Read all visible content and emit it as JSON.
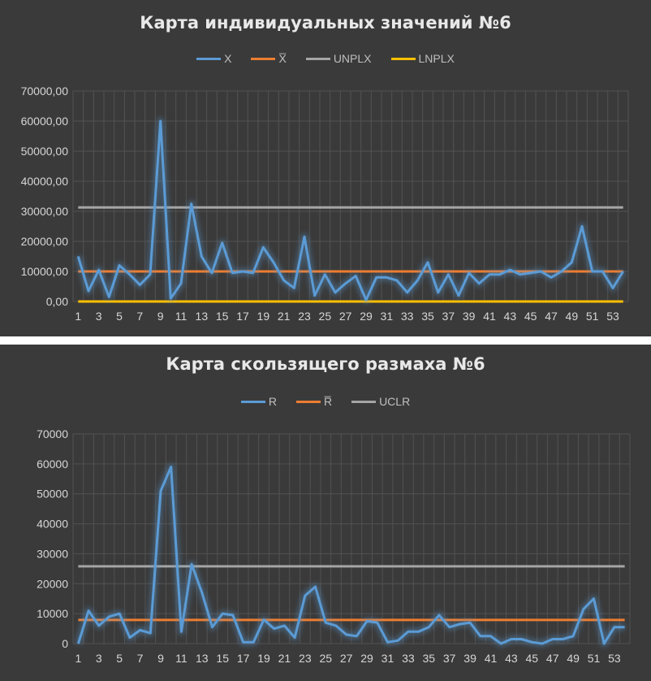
{
  "chart_data": [
    {
      "type": "line",
      "title": "Карта индивидуальных значений №6",
      "ylim": [
        0,
        70000
      ],
      "y_ticks": [
        "0,00",
        "10000,00",
        "20000,00",
        "30000,00",
        "40000,00",
        "50000,00",
        "60000,00",
        "70000,00"
      ],
      "x_ticks": [
        "1",
        "3",
        "5",
        "7",
        "9",
        "11",
        "13",
        "15",
        "17",
        "19",
        "21",
        "23",
        "25",
        "27",
        "29",
        "31",
        "33",
        "35",
        "37",
        "39",
        "41",
        "43",
        "45",
        "47",
        "49",
        "51",
        "53"
      ],
      "legend": "top",
      "grid": true,
      "series": [
        {
          "name": "X",
          "color": "#5b9bd5",
          "values": [
            15000,
            3500,
            10500,
            1500,
            12000,
            9000,
            5500,
            9000,
            60000,
            1000,
            6000,
            32500,
            15000,
            9500,
            19500,
            9500,
            10000,
            9500,
            18000,
            13000,
            7000,
            4500,
            21500,
            2000,
            9000,
            3000,
            6000,
            8500,
            500,
            8000,
            8000,
            7000,
            3000,
            7000,
            13000,
            3000,
            9000,
            2000,
            9500,
            6000,
            9000,
            9000,
            10500,
            9000,
            9500,
            10000,
            8000,
            10000,
            13000,
            25000,
            10000,
            10000,
            4500,
            10000
          ]
        },
        {
          "name": "X̅",
          "color": "#ed7d31",
          "values": [
            10000,
            10000,
            10000,
            10000,
            10000,
            10000,
            10000,
            10000,
            10000,
            10000,
            10000,
            10000,
            10000,
            10000,
            10000,
            10000,
            10000,
            10000,
            10000,
            10000,
            10000,
            10000,
            10000,
            10000,
            10000,
            10000,
            10000,
            10000,
            10000,
            10000,
            10000,
            10000,
            10000,
            10000,
            10000,
            10000,
            10000,
            10000,
            10000,
            10000,
            10000,
            10000,
            10000,
            10000,
            10000,
            10000,
            10000,
            10000,
            10000,
            10000,
            10000,
            10000,
            10000,
            10000
          ]
        },
        {
          "name": "UNPLX",
          "color": "#a5a5a5",
          "values": [
            31300,
            31300,
            31300,
            31300,
            31300,
            31300,
            31300,
            31300,
            31300,
            31300,
            31300,
            31300,
            31300,
            31300,
            31300,
            31300,
            31300,
            31300,
            31300,
            31300,
            31300,
            31300,
            31300,
            31300,
            31300,
            31300,
            31300,
            31300,
            31300,
            31300,
            31300,
            31300,
            31300,
            31300,
            31300,
            31300,
            31300,
            31300,
            31300,
            31300,
            31300,
            31300,
            31300,
            31300,
            31300,
            31300,
            31300,
            31300,
            31300,
            31300,
            31300,
            31300,
            31300,
            31300
          ]
        },
        {
          "name": "LNPLX",
          "color": "#ffc000",
          "values": [
            0,
            0,
            0,
            0,
            0,
            0,
            0,
            0,
            0,
            0,
            0,
            0,
            0,
            0,
            0,
            0,
            0,
            0,
            0,
            0,
            0,
            0,
            0,
            0,
            0,
            0,
            0,
            0,
            0,
            0,
            0,
            0,
            0,
            0,
            0,
            0,
            0,
            0,
            0,
            0,
            0,
            0,
            0,
            0,
            0,
            0,
            0,
            0,
            0,
            0,
            0,
            0,
            0,
            0
          ]
        }
      ]
    },
    {
      "type": "line",
      "title": "Карта скользящего размаха №6",
      "ylim": [
        0,
        70000
      ],
      "y_ticks": [
        "0",
        "10000",
        "20000",
        "30000",
        "40000",
        "50000",
        "60000",
        "70000"
      ],
      "x_ticks": [
        "1",
        "3",
        "5",
        "7",
        "9",
        "11",
        "13",
        "15",
        "17",
        "19",
        "21",
        "23",
        "25",
        "27",
        "29",
        "31",
        "33",
        "35",
        "37",
        "39",
        "41",
        "43",
        "45",
        "47",
        "49",
        "51",
        "53"
      ],
      "legend": "top",
      "grid": true,
      "series": [
        {
          "name": "R",
          "color": "#5b9bd5",
          "values": [
            0,
            11000,
            6000,
            9000,
            10000,
            2000,
            4500,
            3500,
            51000,
            59000,
            4000,
            26500,
            17000,
            5500,
            10000,
            9500,
            500,
            500,
            8000,
            5000,
            6000,
            2000,
            16000,
            19000,
            7000,
            6000,
            3000,
            2500,
            7500,
            7000,
            500,
            1000,
            4000,
            4000,
            5500,
            9500,
            5500,
            6500,
            7000,
            2500,
            2500,
            0,
            1500,
            1500,
            500,
            0,
            1500,
            1500,
            2500,
            11500,
            15000,
            0,
            5500,
            5500
          ]
        },
        {
          "name": "R̅",
          "color": "#ed7d31",
          "values": [
            7900,
            7900,
            7900,
            7900,
            7900,
            7900,
            7900,
            7900,
            7900,
            7900,
            7900,
            7900,
            7900,
            7900,
            7900,
            7900,
            7900,
            7900,
            7900,
            7900,
            7900,
            7900,
            7900,
            7900,
            7900,
            7900,
            7900,
            7900,
            7900,
            7900,
            7900,
            7900,
            7900,
            7900,
            7900,
            7900,
            7900,
            7900,
            7900,
            7900,
            7900,
            7900,
            7900,
            7900,
            7900,
            7900,
            7900,
            7900,
            7900,
            7900,
            7900,
            7900,
            7900,
            7900
          ]
        },
        {
          "name": "UCLR",
          "color": "#a5a5a5",
          "values": [
            25800,
            25800,
            25800,
            25800,
            25800,
            25800,
            25800,
            25800,
            25800,
            25800,
            25800,
            25800,
            25800,
            25800,
            25800,
            25800,
            25800,
            25800,
            25800,
            25800,
            25800,
            25800,
            25800,
            25800,
            25800,
            25800,
            25800,
            25800,
            25800,
            25800,
            25800,
            25800,
            25800,
            25800,
            25800,
            25800,
            25800,
            25800,
            25800,
            25800,
            25800,
            25800,
            25800,
            25800,
            25800,
            25800,
            25800,
            25800,
            25800,
            25800,
            25800,
            25800,
            25800,
            25800
          ]
        }
      ]
    }
  ]
}
